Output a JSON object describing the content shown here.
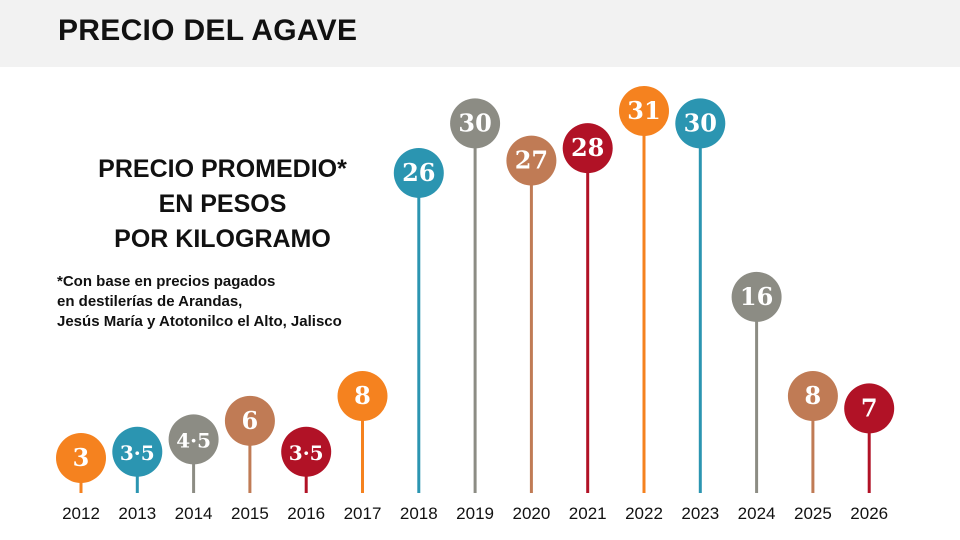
{
  "header": {
    "title": "PRECIO DEL AGAVE"
  },
  "subtitle_lines": [
    "PRECIO PROMEDIO*",
    "EN PESOS",
    "POR KILOGRAMO"
  ],
  "note_lines": [
    "*Con base en precios pagados",
    "en destilerías de Arandas,",
    "Jesús María y Atotonilco el Alto, Jalisco"
  ],
  "colors": {
    "orange": "#f5821f",
    "teal": "#2b95b1",
    "gray": "#8c8c84",
    "tan": "#c07b55",
    "red": "#b11226",
    "header_bg": "#f2f2f2"
  },
  "chart_data": {
    "type": "lollipop",
    "title": "PRECIO DEL AGAVE",
    "ylabel": "PRECIO PROMEDIO* EN PESOS POR KILOGRAMO",
    "categories": [
      "2012",
      "2013",
      "2014",
      "2015",
      "2016",
      "2017",
      "2018",
      "2019",
      "2020",
      "2021",
      "2022",
      "2023",
      "2024",
      "2025",
      "2026"
    ],
    "values": [
      3,
      3.5,
      4.5,
      6,
      3.5,
      8,
      26,
      30,
      27,
      28,
      31,
      30,
      16,
      8,
      7
    ],
    "value_labels": [
      "3",
      "3·5",
      "4·5",
      "6",
      "3·5",
      "8",
      "26",
      "30",
      "27",
      "28",
      "31",
      "30",
      "16",
      "8",
      "7"
    ],
    "point_colors": [
      "orange",
      "teal",
      "gray",
      "tan",
      "red",
      "orange",
      "teal",
      "gray",
      "tan",
      "red",
      "orange",
      "teal",
      "gray",
      "tan",
      "red"
    ],
    "ylim": [
      0,
      31
    ],
    "grid": false,
    "legend": "none"
  }
}
